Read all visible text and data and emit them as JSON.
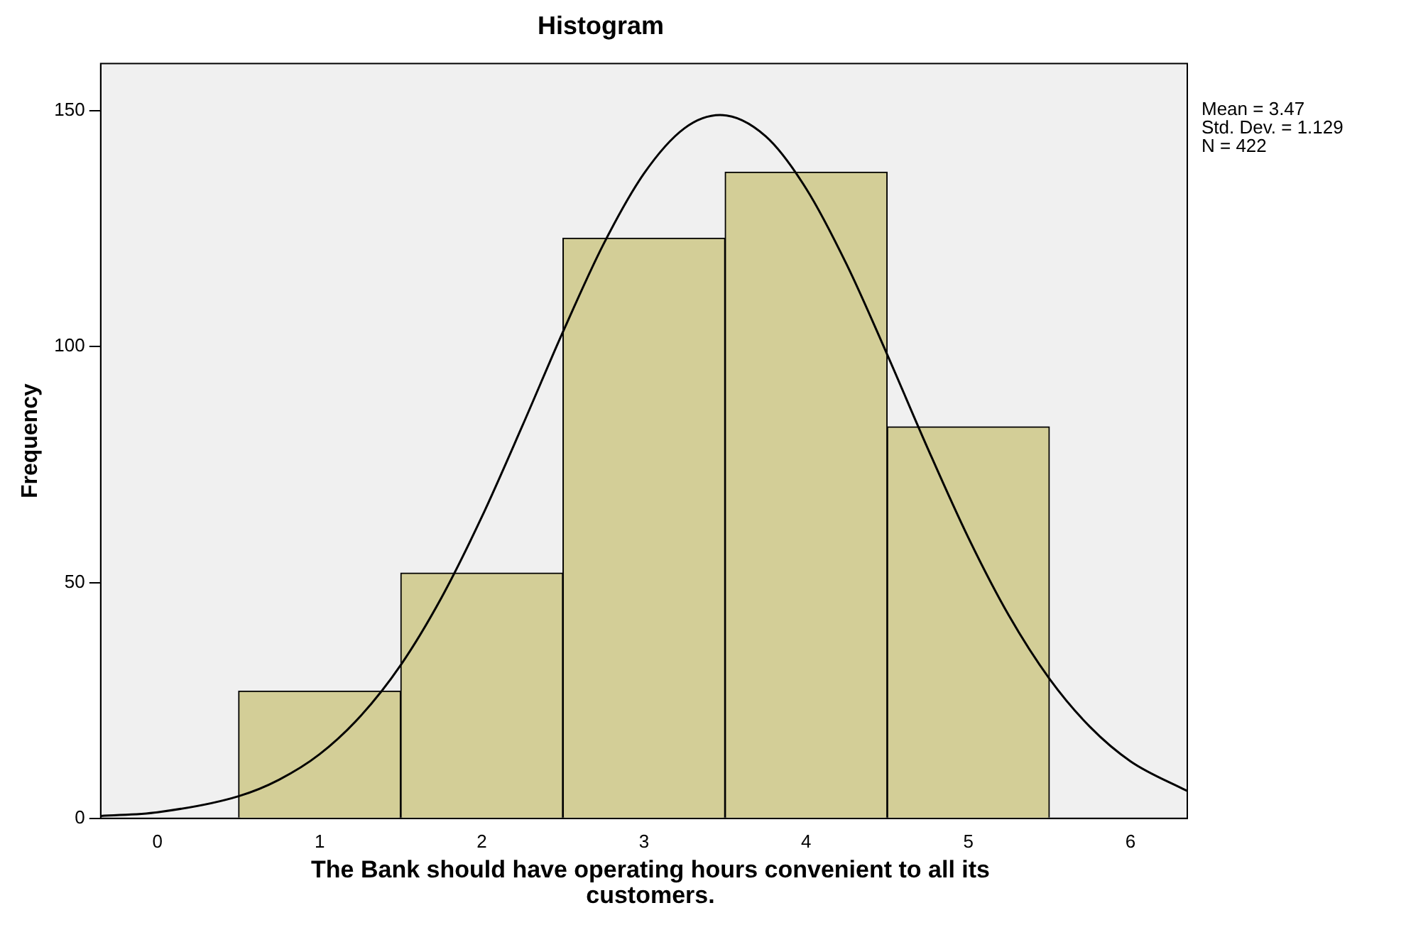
{
  "chart_data": {
    "type": "histogram",
    "title": "Histogram",
    "xlabel": "The Bank should have operating hours convenient to all its customers.",
    "ylabel": "Frequency",
    "bins": [
      0.5,
      1.5,
      2.5,
      3.5,
      4.5,
      5.5
    ],
    "values": [
      27,
      52,
      123,
      137,
      83
    ],
    "color": "#d3ce97",
    "series": [
      {
        "type": "line",
        "color": "#000000",
        "x": [
          -0.35,
          0,
          0.5,
          0.75,
          1,
          1.25,
          1.5,
          1.75,
          2,
          2.25,
          2.5,
          2.75,
          3,
          3.25,
          3.47,
          3.75,
          4,
          4.25,
          4.5,
          4.75,
          5,
          5.25,
          5.5,
          5.75,
          6,
          6.35
        ],
        "values": [
          0.5,
          1.3,
          4.7,
          8.2,
          13.6,
          21.6,
          32.5,
          46.7,
          63.9,
          83.2,
          103.1,
          121.7,
          136.7,
          146.3,
          149.1,
          144.6,
          133.5,
          117.4,
          98.3,
          78.4,
          59.5,
          43.0,
          29.6,
          19.4,
          12.1,
          5.8
        ]
      }
    ],
    "xlim": [
      -0.35,
      6.35
    ],
    "xticks": [
      0,
      1,
      2,
      3,
      4,
      5,
      6
    ],
    "ylim": [
      0,
      160
    ],
    "yticks": [
      0,
      50,
      100,
      150
    ],
    "grid": false,
    "legend": false,
    "marker": "none",
    "annotations": [
      "Mean = 3.47",
      "Std. Dev. = 1.129",
      "N = 422"
    ]
  }
}
